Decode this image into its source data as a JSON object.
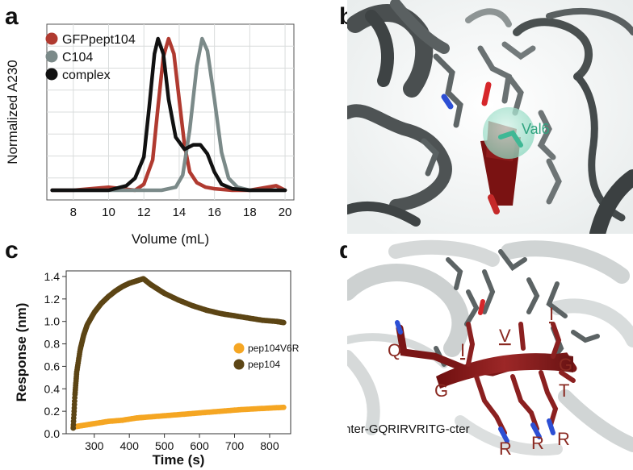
{
  "panels": {
    "a": {
      "letter": "a",
      "chart_data": {
        "type": "line",
        "xlabel": "Volume (mL)",
        "ylabel": "Normalized A230",
        "xlim": [
          6.5,
          20.5
        ],
        "ylim": [
          0,
          1
        ],
        "xticks": [
          "8",
          "10",
          "12",
          "14",
          "16",
          "18",
          "20"
        ],
        "grid": true,
        "legend_position": "top-left",
        "series": [
          {
            "name": "GFPpept104",
            "color": "#b03a30",
            "x": [
              6.8,
              8,
              10,
              11.5,
              12,
              12.5,
              12.8,
              13.1,
              13.4,
              13.7,
              14,
              14.3,
              14.6,
              15,
              15.5,
              16,
              17,
              18,
              19,
              19.5,
              20
            ],
            "y": [
              0.0,
              0.0,
              0.02,
              0.0,
              0.04,
              0.2,
              0.55,
              0.88,
              1.0,
              0.9,
              0.6,
              0.3,
              0.12,
              0.05,
              0.02,
              0.01,
              0.0,
              0.0,
              0.02,
              0.03,
              0.0
            ]
          },
          {
            "name": "C104",
            "color": "#7b8a89",
            "x": [
              6.8,
              10,
              13,
              13.8,
              14.2,
              14.6,
              15,
              15.3,
              15.6,
              16,
              16.4,
              16.8,
              17.3,
              18,
              20
            ],
            "y": [
              0.0,
              0.0,
              0.0,
              0.02,
              0.1,
              0.4,
              0.82,
              1.0,
              0.92,
              0.6,
              0.25,
              0.08,
              0.02,
              0.0,
              0.0
            ]
          },
          {
            "name": "complex",
            "color": "#111111",
            "x": [
              6.8,
              10,
              11,
              11.5,
              12,
              12.3,
              12.6,
              12.8,
              13.1,
              13.4,
              13.8,
              14.3,
              14.8,
              15.2,
              15.6,
              16,
              16.4,
              17,
              18,
              20
            ],
            "y": [
              0.0,
              0.0,
              0.03,
              0.08,
              0.22,
              0.55,
              0.9,
              1.0,
              0.9,
              0.6,
              0.35,
              0.27,
              0.3,
              0.3,
              0.24,
              0.12,
              0.04,
              0.01,
              0.0,
              0.0
            ]
          }
        ]
      }
    },
    "b": {
      "letter": "b",
      "labels": {
        "residue": "Val6"
      }
    },
    "c": {
      "letter": "c",
      "chart_data": {
        "type": "scatter",
        "xlabel": "Time (s)",
        "ylabel": "Response (nm)",
        "xlim": [
          220,
          860
        ],
        "ylim": [
          0,
          1.45
        ],
        "xticks": [
          300,
          400,
          500,
          600,
          700,
          800
        ],
        "yticks": [
          0,
          0.2,
          0.4,
          0.6,
          0.8,
          1.0,
          1.2,
          1.4
        ],
        "ytick_labels": [
          "0.0",
          "0.2",
          "0.4",
          "0.6",
          "0.8",
          "1.0",
          "1.2",
          "1.4"
        ],
        "grid": false,
        "legend_position": "center-right",
        "series": [
          {
            "name": "pep104V6R",
            "color": "#f5a623",
            "x": [
              240,
              260,
              280,
              300,
              340,
              380,
              420,
              440,
              480,
              520,
              560,
              600,
              640,
              680,
              720,
              760,
              800,
              840
            ],
            "y": [
              0.06,
              0.07,
              0.08,
              0.09,
              0.11,
              0.12,
              0.14,
              0.145,
              0.155,
              0.165,
              0.175,
              0.185,
              0.195,
              0.205,
              0.215,
              0.222,
              0.228,
              0.235
            ]
          },
          {
            "name": "pep104",
            "color": "#5c4515",
            "x": [
              240,
              245,
              250,
              260,
              270,
              280,
              300,
              320,
              340,
              360,
              380,
              400,
              420,
              440,
              460,
              480,
              500,
              540,
              580,
              620,
              660,
              700,
              740,
              780,
              820,
              840
            ],
            "y": [
              0.05,
              0.35,
              0.55,
              0.75,
              0.88,
              0.97,
              1.08,
              1.16,
              1.22,
              1.27,
              1.31,
              1.34,
              1.36,
              1.38,
              1.33,
              1.29,
              1.25,
              1.19,
              1.14,
              1.1,
              1.07,
              1.05,
              1.03,
              1.01,
              1.0,
              0.99
            ]
          }
        ]
      }
    },
    "d": {
      "letter": "d",
      "sequence_label": "nter-GQRIRVRITG-cter",
      "residue_labels": [
        "Q",
        "I",
        "V",
        "I",
        "G",
        "G",
        "T",
        "R",
        "R",
        "R"
      ]
    }
  }
}
